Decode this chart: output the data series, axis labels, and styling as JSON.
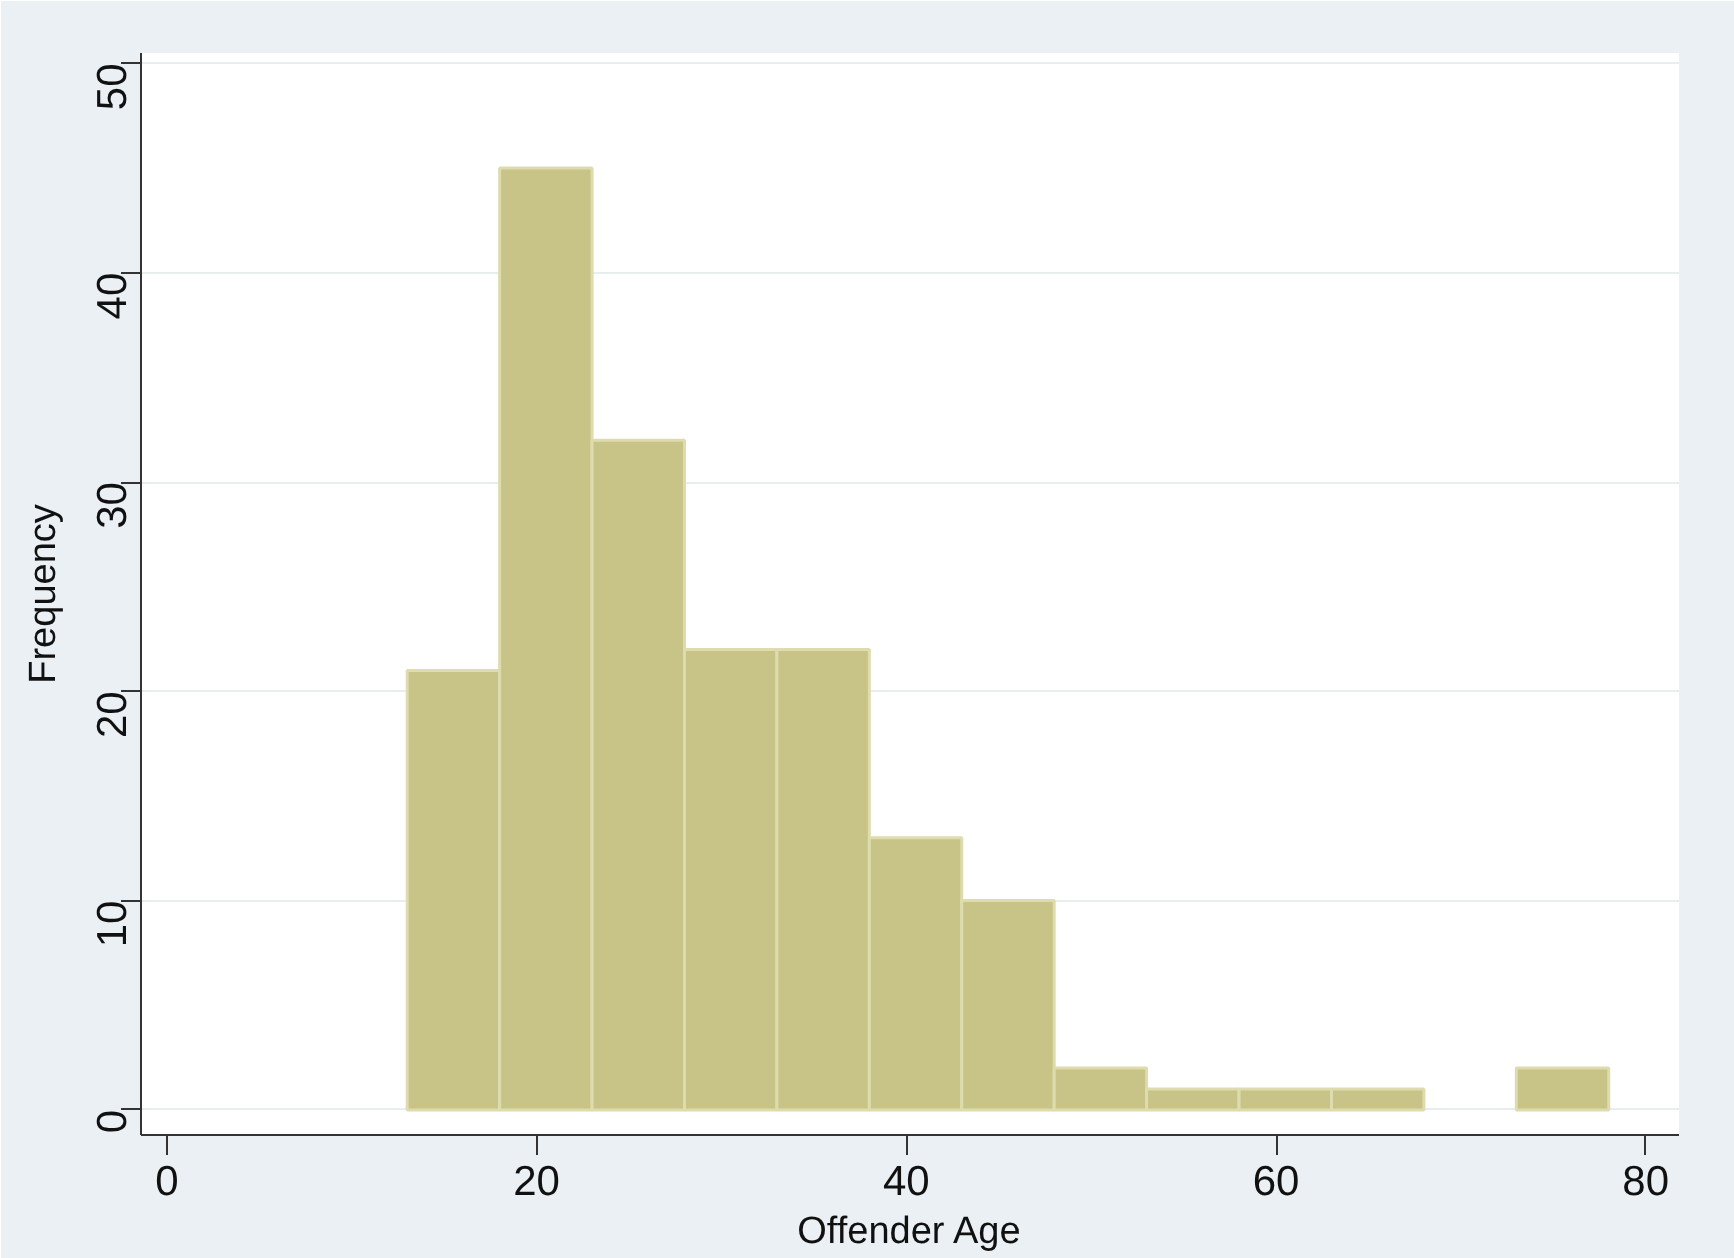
{
  "chart_data": {
    "type": "histogram",
    "xlabel": "Offender Age",
    "ylabel": "Frequency",
    "bins": [
      13,
      18,
      23,
      28,
      33,
      38,
      43,
      48,
      53,
      58,
      63,
      68,
      73,
      78
    ],
    "values": [
      21,
      45,
      32,
      22,
      22,
      13,
      10,
      2,
      1,
      1,
      1,
      0,
      2
    ],
    "color": "#c8c387",
    "xlim": [
      -1.4,
      81.8
    ],
    "xticks": [
      0,
      20,
      40,
      60,
      80
    ],
    "ylim": [
      -1.2,
      50.5
    ],
    "yticks": [
      0,
      10,
      20,
      30,
      40,
      50
    ],
    "grid": "y"
  }
}
